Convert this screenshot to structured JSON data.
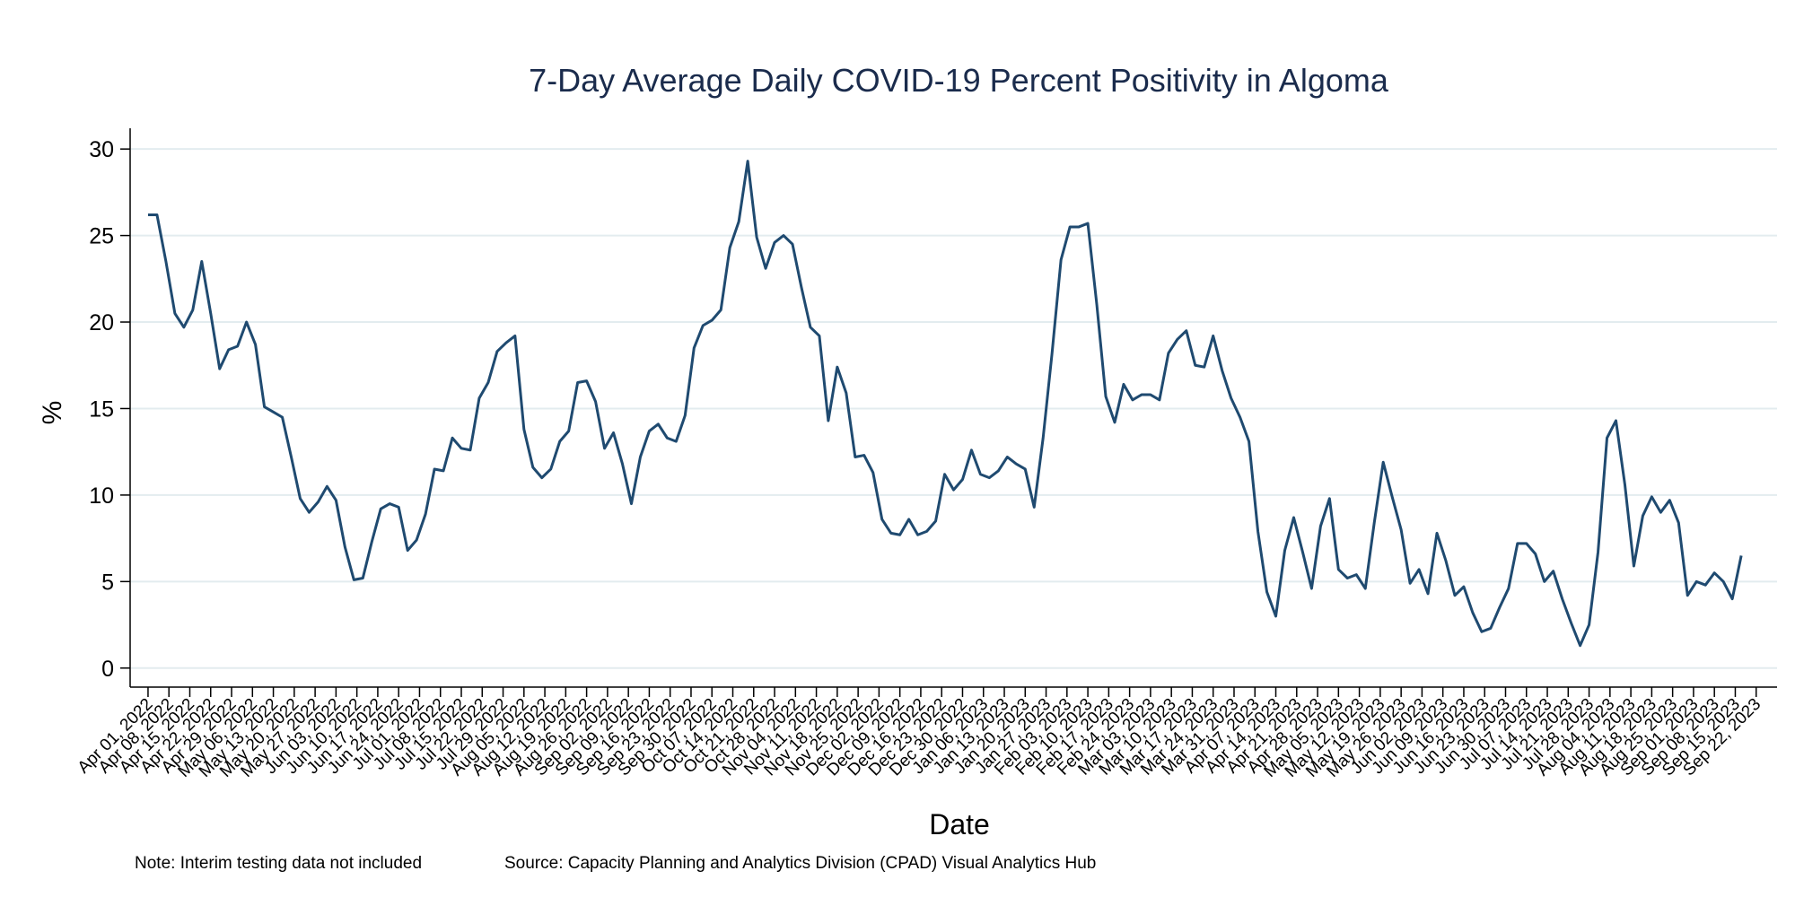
{
  "chart_data": {
    "type": "line",
    "title": "7-Day Average Daily COVID-19 Percent Positivity in Algoma",
    "xlabel": "Date",
    "ylabel": "%",
    "note": "Note: Interim testing data not included",
    "source": "Source: Capacity Planning and Analytics Division (CPAD) Visual Analytics Hub",
    "color": "#1f4a70",
    "grid": true,
    "xlim": [
      "2022-03-26",
      "2023-09-29"
    ],
    "ylim": [
      -1.1,
      31.2
    ],
    "yticks": [
      0,
      5,
      10,
      15,
      20,
      25,
      30
    ],
    "xticks": [
      {
        "value": "2022-04-01",
        "label": "Apr 01, 2022"
      },
      {
        "value": "2022-04-08",
        "label": "Apr 08, 2022"
      },
      {
        "value": "2022-04-15",
        "label": "Apr 15, 2022"
      },
      {
        "value": "2022-04-22",
        "label": "Apr 22, 2022"
      },
      {
        "value": "2022-04-29",
        "label": "Apr 29, 2022"
      },
      {
        "value": "2022-05-06",
        "label": "May 06, 2022"
      },
      {
        "value": "2022-05-13",
        "label": "May 13, 2022"
      },
      {
        "value": "2022-05-20",
        "label": "May 20, 2022"
      },
      {
        "value": "2022-05-27",
        "label": "May 27, 2022"
      },
      {
        "value": "2022-06-03",
        "label": "Jun 03, 2022"
      },
      {
        "value": "2022-06-10",
        "label": "Jun 10, 2022"
      },
      {
        "value": "2022-06-17",
        "label": "Jun 17, 2022"
      },
      {
        "value": "2022-06-24",
        "label": "Jun 24, 2022"
      },
      {
        "value": "2022-07-01",
        "label": "Jul 01, 2022"
      },
      {
        "value": "2022-07-08",
        "label": "Jul 08, 2022"
      },
      {
        "value": "2022-07-15",
        "label": "Jul 15, 2022"
      },
      {
        "value": "2022-07-22",
        "label": "Jul 22, 2022"
      },
      {
        "value": "2022-07-29",
        "label": "Jul 29, 2022"
      },
      {
        "value": "2022-08-05",
        "label": "Aug 05, 2022"
      },
      {
        "value": "2022-08-12",
        "label": "Aug 12, 2022"
      },
      {
        "value": "2022-08-19",
        "label": "Aug 19, 2022"
      },
      {
        "value": "2022-08-26",
        "label": "Aug 26, 2022"
      },
      {
        "value": "2022-09-02",
        "label": "Sep 02, 2022"
      },
      {
        "value": "2022-09-09",
        "label": "Sep 09, 2022"
      },
      {
        "value": "2022-09-16",
        "label": "Sep 16, 2022"
      },
      {
        "value": "2022-09-23",
        "label": "Sep 23, 2022"
      },
      {
        "value": "2022-09-30",
        "label": "Sep 30, 2022"
      },
      {
        "value": "2022-10-07",
        "label": "Oct 07, 2022"
      },
      {
        "value": "2022-10-14",
        "label": "Oct 14, 2022"
      },
      {
        "value": "2022-10-21",
        "label": "Oct 21, 2022"
      },
      {
        "value": "2022-10-28",
        "label": "Oct 28, 2022"
      },
      {
        "value": "2022-11-04",
        "label": "Nov 04, 2022"
      },
      {
        "value": "2022-11-11",
        "label": "Nov 11, 2022"
      },
      {
        "value": "2022-11-18",
        "label": "Nov 18, 2022"
      },
      {
        "value": "2022-11-25",
        "label": "Nov 25, 2022"
      },
      {
        "value": "2022-12-02",
        "label": "Dec 02, 2022"
      },
      {
        "value": "2022-12-09",
        "label": "Dec 09, 2022"
      },
      {
        "value": "2022-12-16",
        "label": "Dec 16, 2022"
      },
      {
        "value": "2022-12-23",
        "label": "Dec 23, 2022"
      },
      {
        "value": "2022-12-30",
        "label": "Dec 30, 2022"
      },
      {
        "value": "2023-01-06",
        "label": "Jan 06, 2023"
      },
      {
        "value": "2023-01-13",
        "label": "Jan 13, 2023"
      },
      {
        "value": "2023-01-20",
        "label": "Jan 20, 2023"
      },
      {
        "value": "2023-01-27",
        "label": "Jan 27, 2023"
      },
      {
        "value": "2023-02-03",
        "label": "Feb 03, 2023"
      },
      {
        "value": "2023-02-10",
        "label": "Feb 10, 2023"
      },
      {
        "value": "2023-02-17",
        "label": "Feb 17, 2023"
      },
      {
        "value": "2023-02-24",
        "label": "Feb 24, 2023"
      },
      {
        "value": "2023-03-03",
        "label": "Mar 03, 2023"
      },
      {
        "value": "2023-03-10",
        "label": "Mar 10, 2023"
      },
      {
        "value": "2023-03-17",
        "label": "Mar 17, 2023"
      },
      {
        "value": "2023-03-24",
        "label": "Mar 24, 2023"
      },
      {
        "value": "2023-03-31",
        "label": "Mar 31, 2023"
      },
      {
        "value": "2023-04-07",
        "label": "Apr 07, 2023"
      },
      {
        "value": "2023-04-14",
        "label": "Apr 14, 2023"
      },
      {
        "value": "2023-04-21",
        "label": "Apr 21, 2023"
      },
      {
        "value": "2023-04-28",
        "label": "Apr 28, 2023"
      },
      {
        "value": "2023-05-05",
        "label": "May 05, 2023"
      },
      {
        "value": "2023-05-12",
        "label": "May 12, 2023"
      },
      {
        "value": "2023-05-19",
        "label": "May 19, 2023"
      },
      {
        "value": "2023-05-26",
        "label": "May 26, 2023"
      },
      {
        "value": "2023-06-02",
        "label": "Jun 02, 2023"
      },
      {
        "value": "2023-06-09",
        "label": "Jun 09, 2023"
      },
      {
        "value": "2023-06-16",
        "label": "Jun 16, 2023"
      },
      {
        "value": "2023-06-23",
        "label": "Jun 23, 2023"
      },
      {
        "value": "2023-06-30",
        "label": "Jun 30, 2023"
      },
      {
        "value": "2023-07-07",
        "label": "Jul 07, 2023"
      },
      {
        "value": "2023-07-14",
        "label": "Jul 14, 2023"
      },
      {
        "value": "2023-07-21",
        "label": "Jul 21, 2023"
      },
      {
        "value": "2023-07-28",
        "label": "Jul 28, 2023"
      },
      {
        "value": "2023-08-04",
        "label": "Aug 04, 2023"
      },
      {
        "value": "2023-08-11",
        "label": "Aug 11, 2023"
      },
      {
        "value": "2023-08-18",
        "label": "Aug 18, 2023"
      },
      {
        "value": "2023-08-25",
        "label": "Aug 25, 2023"
      },
      {
        "value": "2023-09-01",
        "label": "Sep 01, 2023"
      },
      {
        "value": "2023-09-08",
        "label": "Sep 08, 2023"
      },
      {
        "value": "2023-09-15",
        "label": "Sep 15, 2023"
      },
      {
        "value": "2023-09-22",
        "label": "Sep 22, 2023"
      }
    ],
    "x": [
      "2022-04-01",
      "2022-04-04",
      "2022-04-07",
      "2022-04-10",
      "2022-04-13",
      "2022-04-16",
      "2022-04-19",
      "2022-04-22",
      "2022-04-25",
      "2022-04-28",
      "2022-05-01",
      "2022-05-04",
      "2022-05-07",
      "2022-05-10",
      "2022-05-13",
      "2022-05-16",
      "2022-05-19",
      "2022-05-22",
      "2022-05-25",
      "2022-05-28",
      "2022-05-31",
      "2022-06-03",
      "2022-06-06",
      "2022-06-09",
      "2022-06-12",
      "2022-06-15",
      "2022-06-18",
      "2022-06-21",
      "2022-06-24",
      "2022-06-27",
      "2022-06-30",
      "2022-07-03",
      "2022-07-06",
      "2022-07-09",
      "2022-07-12",
      "2022-07-15",
      "2022-07-18",
      "2022-07-21",
      "2022-07-24",
      "2022-07-27",
      "2022-07-30",
      "2022-08-02",
      "2022-08-05",
      "2022-08-08",
      "2022-08-11",
      "2022-08-14",
      "2022-08-17",
      "2022-08-20",
      "2022-08-23",
      "2022-08-26",
      "2022-08-29",
      "2022-09-01",
      "2022-09-04",
      "2022-09-07",
      "2022-09-10",
      "2022-09-13",
      "2022-09-16",
      "2022-09-19",
      "2022-09-22",
      "2022-09-25",
      "2022-09-28",
      "2022-10-01",
      "2022-10-04",
      "2022-10-07",
      "2022-10-10",
      "2022-10-13",
      "2022-10-16",
      "2022-10-19",
      "2022-10-22",
      "2022-10-25",
      "2022-10-28",
      "2022-10-31",
      "2022-11-03",
      "2022-11-06",
      "2022-11-09",
      "2022-11-12",
      "2022-11-15",
      "2022-11-18",
      "2022-11-21",
      "2022-11-24",
      "2022-11-27",
      "2022-11-30",
      "2022-12-03",
      "2022-12-06",
      "2022-12-09",
      "2022-12-12",
      "2022-12-15",
      "2022-12-18",
      "2022-12-21",
      "2022-12-24",
      "2022-12-27",
      "2022-12-30",
      "2023-01-02",
      "2023-01-05",
      "2023-01-08",
      "2023-01-11",
      "2023-01-14",
      "2023-01-17",
      "2023-01-20",
      "2023-01-23",
      "2023-01-26",
      "2023-01-29",
      "2023-02-01",
      "2023-02-04",
      "2023-02-07",
      "2023-02-10",
      "2023-02-13",
      "2023-02-16",
      "2023-02-19",
      "2023-02-22",
      "2023-02-25",
      "2023-02-28",
      "2023-03-03",
      "2023-03-06",
      "2023-03-09",
      "2023-03-12",
      "2023-03-15",
      "2023-03-18",
      "2023-03-21",
      "2023-03-24",
      "2023-03-27",
      "2023-03-30",
      "2023-04-02",
      "2023-04-05",
      "2023-04-08",
      "2023-04-11",
      "2023-04-14",
      "2023-04-17",
      "2023-04-20",
      "2023-04-23",
      "2023-04-26",
      "2023-04-29",
      "2023-05-02",
      "2023-05-05",
      "2023-05-08",
      "2023-05-11",
      "2023-05-14",
      "2023-05-17",
      "2023-05-20",
      "2023-05-23",
      "2023-05-26",
      "2023-05-29",
      "2023-06-01",
      "2023-06-04",
      "2023-06-07",
      "2023-06-10",
      "2023-06-13",
      "2023-06-16",
      "2023-06-19",
      "2023-06-22",
      "2023-06-25",
      "2023-06-28",
      "2023-07-01",
      "2023-07-04",
      "2023-07-07",
      "2023-07-10",
      "2023-07-13",
      "2023-07-16",
      "2023-07-19",
      "2023-07-22",
      "2023-07-25",
      "2023-07-28",
      "2023-07-31",
      "2023-08-03",
      "2023-08-06",
      "2023-08-09",
      "2023-08-12",
      "2023-08-15",
      "2023-08-18",
      "2023-08-21",
      "2023-08-24",
      "2023-08-27",
      "2023-08-30",
      "2023-09-02",
      "2023-09-05",
      "2023-09-08",
      "2023-09-11",
      "2023-09-14",
      "2023-09-17"
    ],
    "values": [
      26.2,
      26.2,
      23.5,
      20.5,
      19.7,
      20.7,
      23.5,
      20.5,
      17.3,
      18.4,
      18.6,
      20.0,
      18.7,
      15.1,
      14.8,
      14.5,
      12.2,
      9.8,
      9.0,
      9.6,
      10.5,
      9.7,
      7.0,
      5.1,
      5.2,
      7.3,
      9.2,
      9.5,
      9.3,
      6.8,
      7.4,
      8.9,
      11.5,
      11.4,
      13.3,
      12.7,
      12.6,
      15.6,
      16.5,
      18.3,
      18.8,
      19.2,
      13.8,
      11.6,
      11.0,
      11.5,
      13.1,
      13.7,
      16.5,
      16.6,
      15.4,
      12.7,
      13.6,
      11.8,
      9.5,
      12.2,
      13.7,
      14.1,
      13.3,
      13.1,
      14.6,
      18.5,
      19.8,
      20.1,
      20.7,
      24.3,
      25.8,
      29.3,
      24.9,
      23.1,
      24.6,
      25.0,
      24.5,
      22.0,
      19.7,
      19.2,
      14.3,
      17.4,
      15.9,
      12.2,
      12.3,
      11.3,
      8.6,
      7.8,
      7.7,
      8.6,
      7.7,
      7.9,
      8.5,
      11.2,
      10.3,
      10.9,
      12.6,
      11.2,
      11.0,
      11.4,
      12.2,
      11.8,
      11.5,
      9.3,
      13.3,
      18.2,
      23.6,
      25.5,
      25.5,
      25.7,
      21.0,
      15.7,
      14.2,
      16.4,
      15.5,
      15.8,
      15.8,
      15.5,
      18.2,
      19.0,
      19.5,
      17.5,
      17.4,
      19.2,
      17.2,
      15.6,
      14.5,
      13.1,
      7.9,
      4.4,
      3.0,
      6.8,
      8.7,
      6.7,
      4.6,
      8.2,
      9.8,
      5.7,
      5.2,
      5.4,
      4.6,
      8.4,
      11.9,
      9.9,
      8.0,
      4.9,
      5.7,
      4.3,
      7.8,
      6.2,
      4.2,
      4.7,
      3.2,
      2.1,
      2.3,
      3.5,
      4.6,
      7.2,
      7.2,
      6.6,
      5.0,
      5.6,
      4.0,
      2.6,
      1.3,
      2.5,
      6.7,
      13.3,
      14.3,
      10.6,
      5.9,
      8.8,
      9.9,
      9.0,
      9.7,
      8.4,
      4.2,
      5.0,
      4.8,
      5.5,
      5.0,
      4.0,
      6.5
    ]
  }
}
